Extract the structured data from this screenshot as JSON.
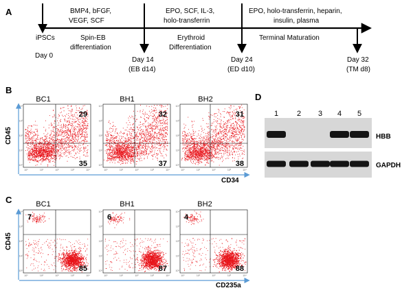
{
  "panels": {
    "A": "A",
    "B": "B",
    "C": "C",
    "D": "D"
  },
  "timeline": {
    "bracket_labels": [
      [
        "BMP4, bFGF,",
        "VEGF, SCF"
      ],
      [
        "EPO, SCF, IL-3,",
        "holo-transferrin"
      ],
      [
        "EPO, holo-transferrin, heparin,",
        "insulin, plasma"
      ]
    ],
    "stage_labels": [
      [
        "Spin-EB",
        "differentiation"
      ],
      [
        "Erythroid",
        "Differentiation"
      ],
      [
        "Terminal Maturation"
      ]
    ],
    "day_labels": [
      [
        "iPSCs",
        "Day 0"
      ],
      [
        "Day 14",
        "(EB d14)"
      ],
      [
        "Day 24",
        "(ED d10)"
      ],
      [
        "Day 32",
        "(TM d8)"
      ]
    ]
  },
  "flow_B": {
    "samples": [
      "BC1",
      "BH1",
      "BH2"
    ],
    "upper_right": [
      "29",
      "32",
      "31"
    ],
    "lower_right": [
      "35",
      "37",
      "38"
    ],
    "y_axis": "CD45",
    "x_axis": "CD34"
  },
  "flow_C": {
    "samples": [
      "BC1",
      "BH1",
      "BH2"
    ],
    "upper_left": [
      "7",
      "6",
      "4"
    ],
    "lower_right": [
      "85",
      "87",
      "88"
    ],
    "y_axis": "CD45",
    "x_axis": "CD235a"
  },
  "western_D": {
    "lanes": [
      "1",
      "2",
      "3",
      "4",
      "5"
    ],
    "hbb_present": [
      true,
      false,
      false,
      true,
      true
    ],
    "gapdh_present": [
      true,
      true,
      true,
      true,
      true
    ],
    "band_labels": [
      "HBB",
      "GAPDH"
    ]
  },
  "tick_text": {
    "x": [
      "10⁰",
      "10¹",
      "10²",
      "10³",
      "10⁴"
    ],
    "y": [
      "10⁴",
      "10³",
      "10²",
      "10¹",
      "10⁰"
    ]
  },
  "colors": {
    "dot": "#e8151b",
    "axis_arrow": "#5b9bd5",
    "blot_bg": "#d7d7d7",
    "band": "#141414"
  }
}
